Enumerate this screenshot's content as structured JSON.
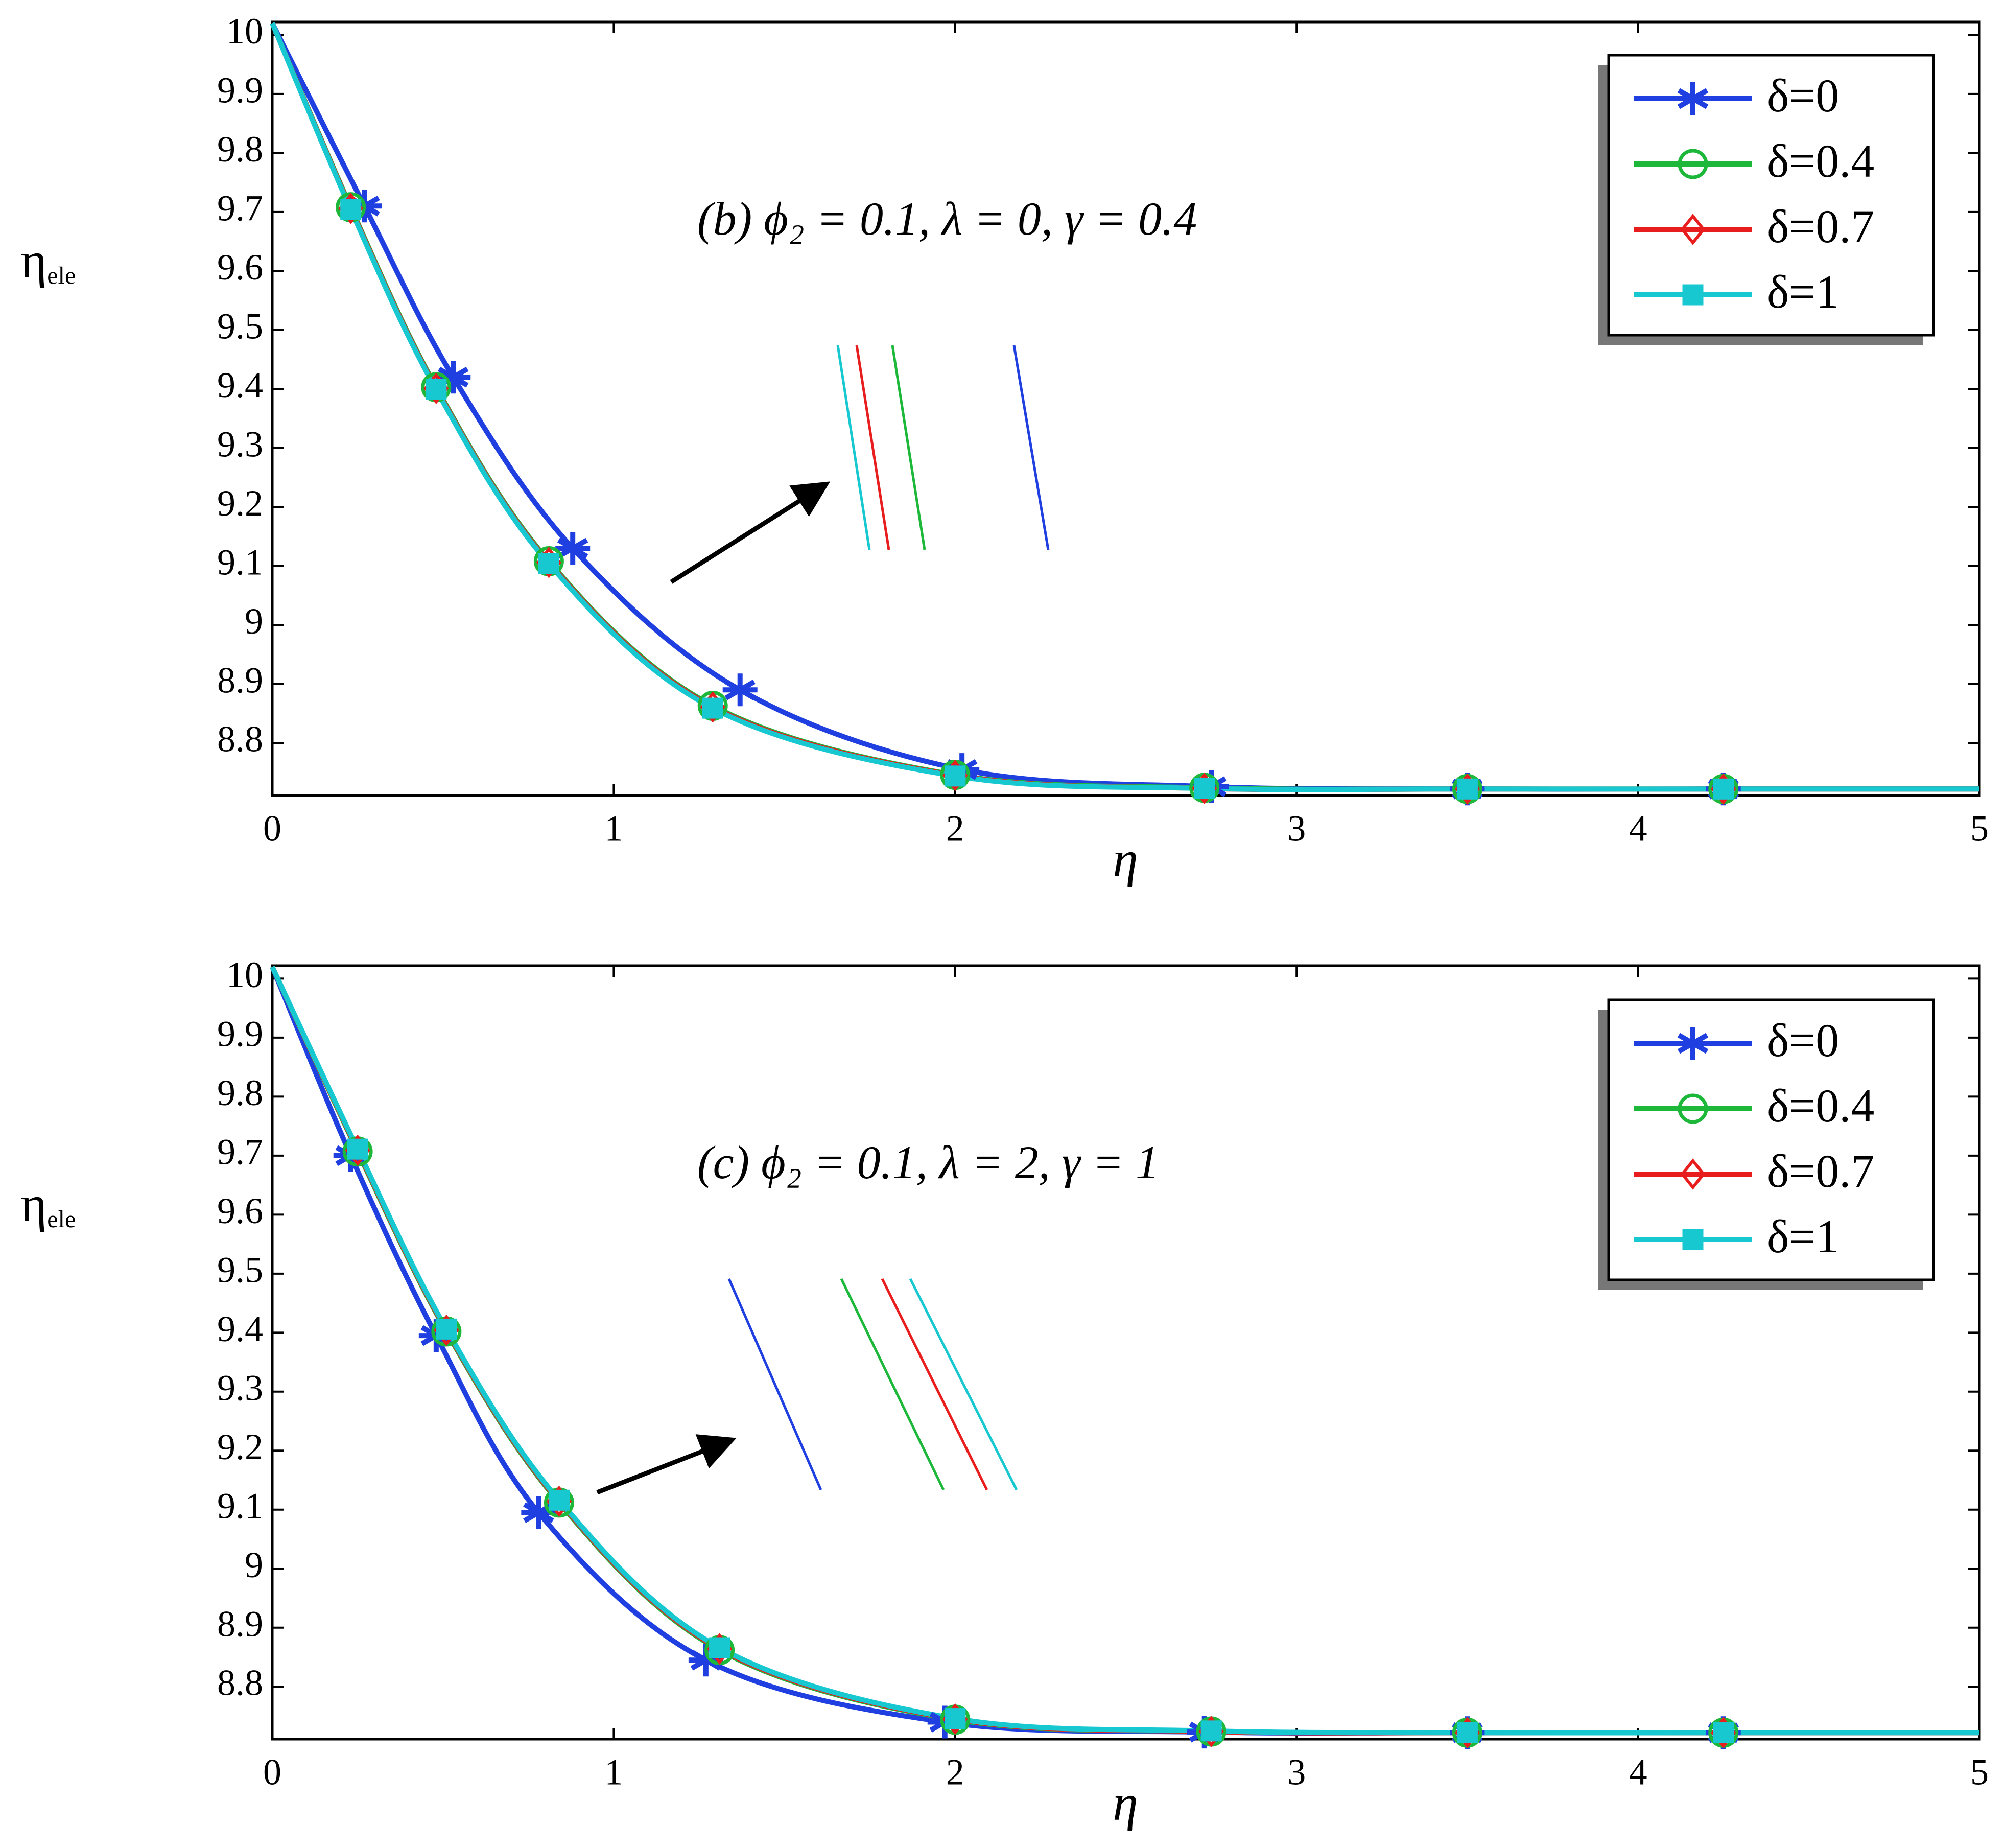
{
  "chart_data": [
    {
      "type": "line",
      "annotation": "(b) ϕ₂ = 0.1, λ = 0, γ = 0.4",
      "xlabel": "η",
      "ylabel": "η",
      "ylabel_subscript": "ele",
      "xlim": [
        0,
        5
      ],
      "xticks": [
        0,
        1,
        2,
        3,
        4,
        5
      ],
      "ylim": [
        8.711,
        10.022
      ],
      "yticks": [
        8.8,
        8.9,
        9,
        9.1,
        9.2,
        9.3,
        9.4,
        9.5,
        9.6,
        9.7,
        9.8,
        9.9,
        10
      ],
      "legend": "upper right",
      "series": [
        {
          "name": "δ=0",
          "color": "#1f3fe0",
          "marker": "asterisk",
          "x": [
            0,
            0.27,
            0.53,
            0.88,
            1.37,
            2.02,
            2.75,
            3.5,
            4.25,
            5
          ],
          "values": [
            10.02,
            9.71,
            9.42,
            9.13,
            8.89,
            8.755,
            8.726,
            8.722,
            8.722,
            8.722
          ]
        },
        {
          "name": "δ=0.4",
          "color": "#1db83a",
          "marker": "circle",
          "x": [
            0,
            0.23,
            0.48,
            0.81,
            1.29,
            2.0,
            2.73,
            3.5,
            4.25,
            5
          ],
          "values": [
            10.02,
            9.708,
            9.403,
            9.108,
            8.863,
            8.746,
            8.724,
            8.722,
            8.722,
            8.722
          ]
        },
        {
          "name": "δ=0.7",
          "color": "#e81e1e",
          "marker": "diamond",
          "x": [
            0,
            0.23,
            0.48,
            0.81,
            1.29,
            2.0,
            2.73,
            3.5,
            4.25,
            5
          ],
          "values": [
            10.02,
            9.706,
            9.401,
            9.106,
            8.861,
            8.745,
            8.723,
            8.722,
            8.722,
            8.722
          ]
        },
        {
          "name": "δ=1",
          "color": "#18c8d0",
          "marker": "square",
          "x": [
            0,
            0.23,
            0.48,
            0.81,
            1.29,
            2.0,
            2.73,
            3.5,
            4.25,
            5
          ],
          "values": [
            10.02,
            9.704,
            9.399,
            9.104,
            8.859,
            8.744,
            8.723,
            8.722,
            8.722,
            8.722
          ]
        }
      ]
    },
    {
      "type": "line",
      "annotation": "(c) ϕ₂ = 0.1, λ = 2, γ = 1",
      "xlabel": "η",
      "ylabel": "η",
      "ylabel_subscript": "ele",
      "xlim": [
        0,
        5
      ],
      "xticks": [
        0,
        1,
        2,
        3,
        4,
        5
      ],
      "ylim": [
        8.711,
        10.022
      ],
      "yticks": [
        8.8,
        8.9,
        9,
        9.1,
        9.2,
        9.3,
        9.4,
        9.5,
        9.6,
        9.7,
        9.8,
        9.9,
        10
      ],
      "legend": "upper right",
      "series": [
        {
          "name": "δ=0",
          "color": "#1f3fe0",
          "marker": "asterisk",
          "x": [
            0,
            0.23,
            0.48,
            0.78,
            1.27,
            1.97,
            2.73,
            3.5,
            4.25,
            5
          ],
          "values": [
            10.02,
            9.7,
            9.395,
            9.095,
            8.845,
            8.74,
            8.723,
            8.722,
            8.722,
            8.722
          ]
        },
        {
          "name": "δ=0.4",
          "color": "#1db83a",
          "marker": "circle",
          "x": [
            0,
            0.25,
            0.51,
            0.84,
            1.31,
            2.0,
            2.75,
            3.5,
            4.25,
            5
          ],
          "values": [
            10.02,
            9.707,
            9.402,
            9.112,
            8.862,
            8.744,
            8.724,
            8.722,
            8.722,
            8.722
          ]
        },
        {
          "name": "δ=0.7",
          "color": "#e81e1e",
          "marker": "diamond",
          "x": [
            0,
            0.25,
            0.51,
            0.84,
            1.31,
            2.0,
            2.75,
            3.5,
            4.25,
            5
          ],
          "values": [
            10.02,
            9.709,
            9.404,
            9.114,
            8.864,
            8.745,
            8.724,
            8.722,
            8.722,
            8.722
          ]
        },
        {
          "name": "δ=1",
          "color": "#18c8d0",
          "marker": "square",
          "x": [
            0,
            0.25,
            0.51,
            0.84,
            1.31,
            2.0,
            2.75,
            3.5,
            4.25,
            5
          ],
          "values": [
            10.02,
            9.711,
            9.406,
            9.116,
            8.866,
            8.746,
            8.725,
            8.722,
            8.722,
            8.722
          ]
        }
      ]
    }
  ]
}
